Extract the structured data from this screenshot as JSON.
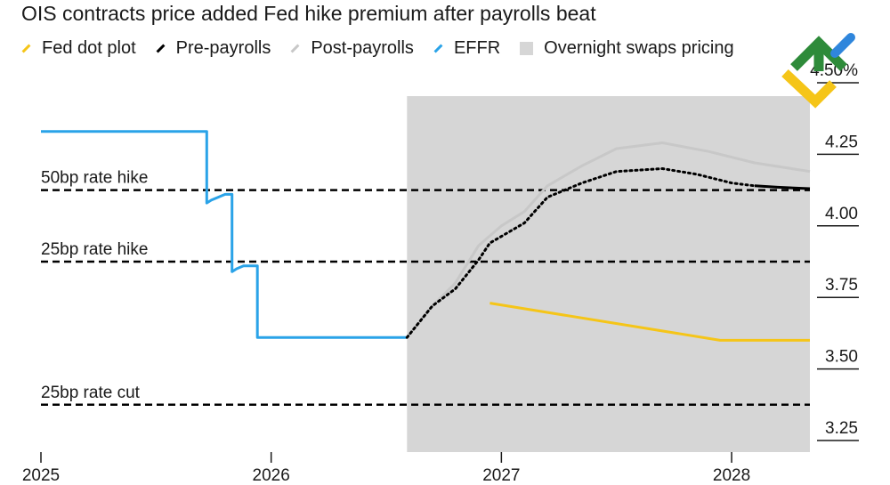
{
  "header": {
    "title": "OIS contracts price added Fed hike premium after payrolls beat"
  },
  "colors": {
    "fed_dot_plot": "#f5c518",
    "pre_payrolls": "#000000",
    "post_payrolls": "#c8c8c8",
    "effr": "#2aa3e8",
    "shading": "#d6d6d6"
  },
  "chart_data": {
    "type": "line",
    "title": "OIS contracts price added Fed hike premium after payrolls beat",
    "xlabel": "",
    "ylabel": "",
    "xlim": [
      2025.0,
      2028.34
    ],
    "ylim": [
      3.2,
      4.52
    ],
    "x_ticks": [
      2025,
      2026,
      2027,
      2028
    ],
    "x_tick_labels": [
      "2025",
      "2026",
      "2027",
      "2028"
    ],
    "y_ticks": [
      3.25,
      3.5,
      3.75,
      4.0,
      4.25,
      4.5
    ],
    "y_tick_labels": [
      "3.25",
      "3.50",
      "3.75",
      "4.00",
      "4.25",
      "4.50%"
    ],
    "grid": false,
    "legend_position": "top",
    "legend": [
      "Fed dot plot",
      "Pre-payrolls",
      "Post-payrolls",
      "EFFR",
      "Overnight swaps pricing"
    ],
    "shaded_region": {
      "label": "Overnight swaps pricing",
      "x": [
        2026.59,
        2028.34
      ]
    },
    "reference_lines": [
      {
        "label": "50bp rate hike",
        "y": 4.125
      },
      {
        "label": "25bp rate hike",
        "y": 3.875
      },
      {
        "label": "25bp rate cut",
        "y": 3.375
      }
    ],
    "series": [
      {
        "name": "EFFR",
        "style": "step",
        "x": [
          2025.0,
          2025.72,
          2025.72,
          2025.74,
          2025.77,
          2025.8,
          2025.83,
          2025.83,
          2025.85,
          2025.88,
          2025.94,
          2025.94,
          2026.59
        ],
        "y": [
          4.33,
          4.33,
          4.08,
          4.09,
          4.1,
          4.11,
          4.11,
          3.84,
          3.85,
          3.86,
          3.86,
          3.61,
          3.61
        ]
      },
      {
        "name": "Post-payrolls",
        "style": "solid",
        "x": [
          2026.59,
          2026.7,
          2026.8,
          2026.9,
          2027.0,
          2027.1,
          2027.2,
          2027.35,
          2027.5,
          2027.7,
          2027.9,
          2028.1,
          2028.34
        ],
        "y": [
          3.61,
          3.72,
          3.8,
          3.93,
          4.0,
          4.05,
          4.14,
          4.21,
          4.27,
          4.29,
          4.26,
          4.22,
          4.19
        ]
      },
      {
        "name": "Pre-payrolls",
        "style": "dotted",
        "x": [
          2026.59,
          2026.7,
          2026.8,
          2026.9,
          2026.95,
          2027.1,
          2027.2,
          2027.35,
          2027.5,
          2027.7,
          2027.85,
          2028.0,
          2028.1
        ],
        "y": [
          3.61,
          3.72,
          3.78,
          3.88,
          3.94,
          4.01,
          4.1,
          4.15,
          4.19,
          4.2,
          4.18,
          4.15,
          4.14
        ]
      },
      {
        "name": "Pre-payrolls",
        "style": "solid",
        "x": [
          2028.1,
          2028.2,
          2028.34
        ],
        "y": [
          4.14,
          4.135,
          4.13
        ]
      },
      {
        "name": "Fed dot plot",
        "style": "solid",
        "x": [
          2026.95,
          2027.95,
          2028.34
        ],
        "y": [
          3.73,
          3.6,
          3.6
        ]
      }
    ]
  },
  "legend": {
    "items": [
      {
        "label": "Fed dot plot",
        "color": "#f5c518",
        "kind": "line"
      },
      {
        "label": "Pre-payrolls",
        "color": "#000000",
        "kind": "line"
      },
      {
        "label": "Post-payrolls",
        "color": "#c8c8c8",
        "kind": "line"
      },
      {
        "label": "EFFR",
        "color": "#2aa3e8",
        "kind": "line"
      },
      {
        "label": "Overnight swaps pricing",
        "color": "#d6d6d6",
        "kind": "box"
      }
    ]
  },
  "logo": {
    "name": "diamond-checkmark-logo"
  }
}
